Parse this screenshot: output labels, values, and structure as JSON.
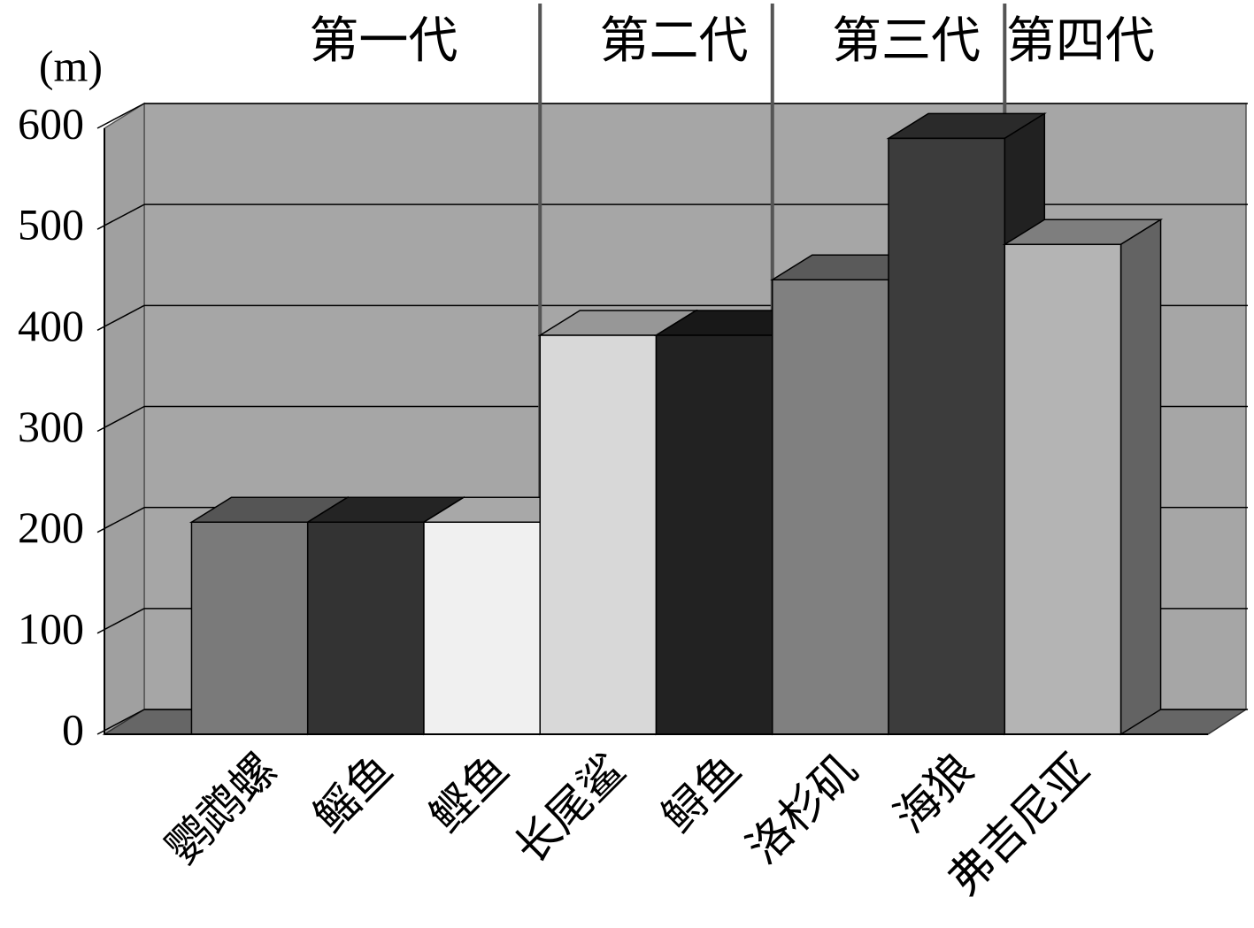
{
  "chart_data": {
    "type": "bar3d",
    "y_label": "(m)",
    "categories": [
      "鹦鹉螺",
      "鳐鱼",
      "鲣鱼",
      "长尾鲨",
      "鲟鱼",
      "洛杉矶",
      "海狼",
      "弗吉尼亚"
    ],
    "values": [
      210,
      210,
      210,
      395,
      395,
      450,
      590,
      485
    ],
    "colors": [
      "#7a7a7a",
      "#333333",
      "#f0f0f0",
      "#d8d8d8",
      "#222222",
      "#808080",
      "#3c3c3c",
      "#b4b4b4"
    ],
    "groups": [
      {
        "label": "第一代",
        "members": [
          "鹦鹉螺",
          "鳐鱼",
          "鲣鱼"
        ]
      },
      {
        "label": "第二代",
        "members": [
          "长尾鲨",
          "鲟鱼"
        ]
      },
      {
        "label": "第三代",
        "members": [
          "洛杉矶",
          "海狼"
        ]
      },
      {
        "label": "第四代",
        "members": [
          "弗吉尼亚"
        ]
      }
    ],
    "ylim": [
      0,
      600
    ],
    "yticks": [
      0,
      100,
      200,
      300,
      400,
      500,
      600
    ],
    "grid": true
  }
}
